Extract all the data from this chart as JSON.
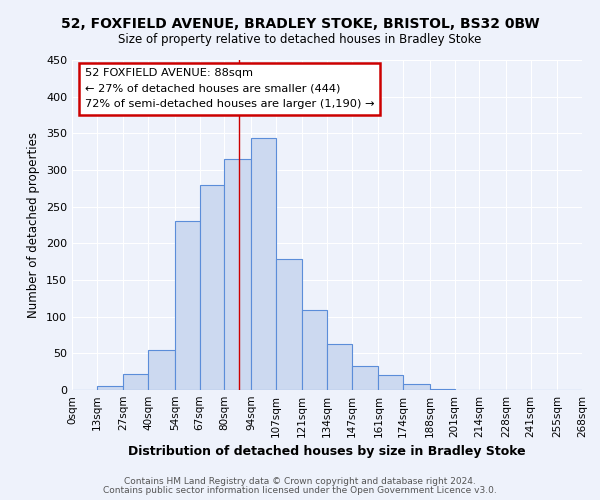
{
  "title1": "52, FOXFIELD AVENUE, BRADLEY STOKE, BRISTOL, BS32 0BW",
  "title2": "Size of property relative to detached houses in Bradley Stoke",
  "xlabel": "Distribution of detached houses by size in Bradley Stoke",
  "ylabel": "Number of detached properties",
  "footer1": "Contains HM Land Registry data © Crown copyright and database right 2024.",
  "footer2": "Contains public sector information licensed under the Open Government Licence v3.0.",
  "bin_labels": [
    "0sqm",
    "13sqm",
    "27sqm",
    "40sqm",
    "54sqm",
    "67sqm",
    "80sqm",
    "94sqm",
    "107sqm",
    "121sqm",
    "134sqm",
    "147sqm",
    "161sqm",
    "174sqm",
    "188sqm",
    "201sqm",
    "214sqm",
    "228sqm",
    "241sqm",
    "255sqm",
    "268sqm"
  ],
  "bin_edges": [
    0,
    13,
    27,
    40,
    54,
    67,
    80,
    94,
    107,
    121,
    134,
    147,
    161,
    174,
    188,
    201,
    214,
    228,
    241,
    255,
    268
  ],
  "bar_heights": [
    0,
    6,
    22,
    55,
    230,
    280,
    315,
    343,
    178,
    109,
    63,
    33,
    20,
    8,
    2,
    0,
    0,
    0,
    0,
    0
  ],
  "bar_color": "#ccd9f0",
  "bar_edge_color": "#5b8dd9",
  "property_line_x": 88,
  "annotation_title": "52 FOXFIELD AVENUE: 88sqm",
  "annotation_line1": "← 27% of detached houses are smaller (444)",
  "annotation_line2": "72% of semi-detached houses are larger (1,190) →",
  "annotation_box_color": "#ffffff",
  "annotation_box_edge_color": "#cc0000",
  "property_line_color": "#cc0000",
  "ylim": [
    0,
    450
  ],
  "background_color": "#eef2fb",
  "grid_color": "#ffffff",
  "yticks": [
    0,
    50,
    100,
    150,
    200,
    250,
    300,
    350,
    400,
    450
  ]
}
